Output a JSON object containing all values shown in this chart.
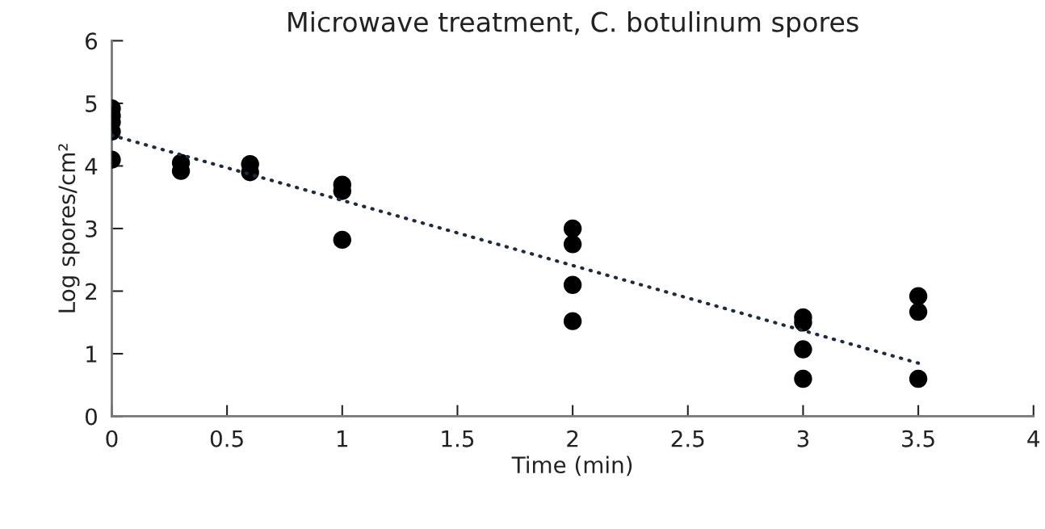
{
  "chart_data": {
    "type": "scatter",
    "title": "Microwave treatment, C. botulinum spores",
    "xlabel": "Time (min)",
    "ylabel": "Log spores/cm²",
    "series": [
      {
        "color": "#000000",
        "marker": "circle",
        "x": [
          0,
          0,
          0,
          0,
          0,
          0.3,
          0.3,
          0.6,
          0.6,
          1,
          1,
          1,
          2,
          2,
          2,
          2,
          3,
          3,
          3,
          3,
          3.5,
          3.5,
          3.5
        ],
        "values": [
          4.92,
          4.8,
          4.7,
          4.55,
          4.1,
          4.05,
          3.92,
          4.03,
          3.9,
          3.7,
          3.6,
          2.82,
          3.0,
          2.75,
          2.1,
          1.52,
          1.58,
          1.5,
          1.07,
          0.6,
          1.92,
          1.67,
          0.6
        ]
      },
      {
        "type": "line",
        "color": "#1f2a3a",
        "line_style": "dotted",
        "marker": "none",
        "x": [
          0,
          3.5
        ],
        "values": [
          4.49,
          0.85
        ]
      }
    ],
    "xlim": [
      0,
      4
    ],
    "xticks": [
      0,
      0.5,
      1,
      1.5,
      2,
      2.5,
      3,
      3.5,
      4
    ],
    "ylim": [
      0,
      6
    ],
    "yticks": [
      0,
      1,
      2,
      3,
      4,
      5,
      6
    ],
    "grid": false,
    "legend": false
  }
}
